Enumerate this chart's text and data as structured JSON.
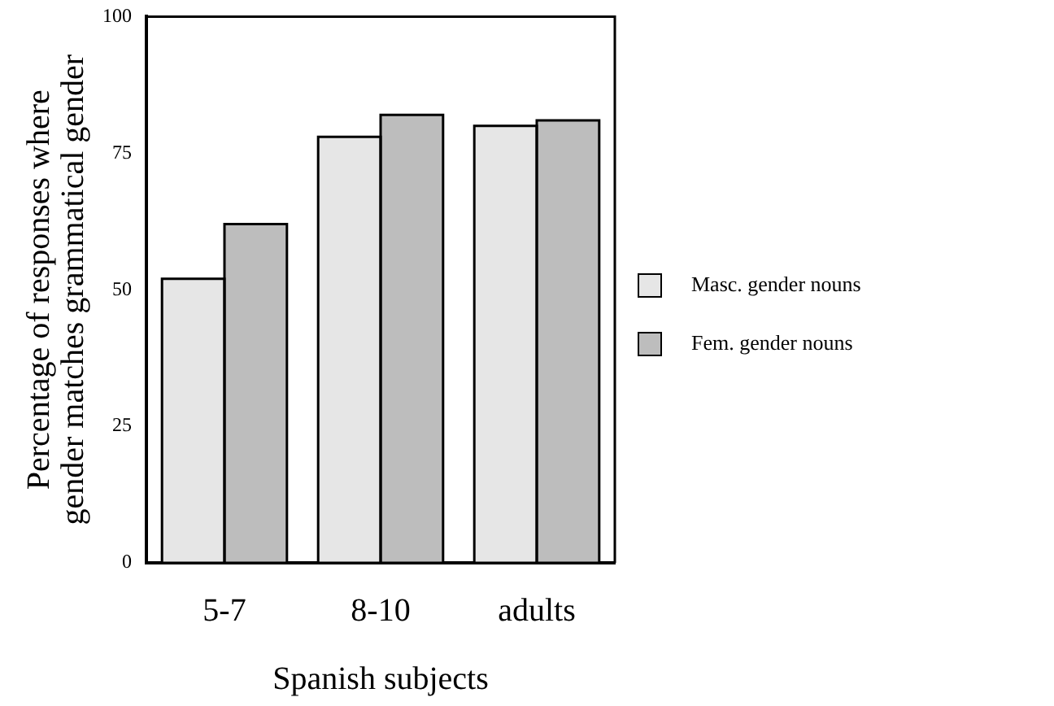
{
  "chart_data": {
    "type": "bar",
    "xlabel": "Spanish subjects",
    "ylabel": "Percentage of responses where\ngender matches grammatical gender",
    "categories": [
      "5-7",
      "8-10",
      "adults"
    ],
    "series": [
      {
        "name": "Masc. gender nouns",
        "color": "#e6e6e6",
        "values": [
          52,
          78,
          80
        ]
      },
      {
        "name": "Fem. gender nouns",
        "color": "#bdbdbd",
        "values": [
          62,
          82,
          81
        ]
      }
    ],
    "ylim": [
      0,
      100
    ],
    "yticks": [
      0,
      25,
      50,
      75,
      100
    ],
    "grid": false,
    "legend": "right"
  }
}
